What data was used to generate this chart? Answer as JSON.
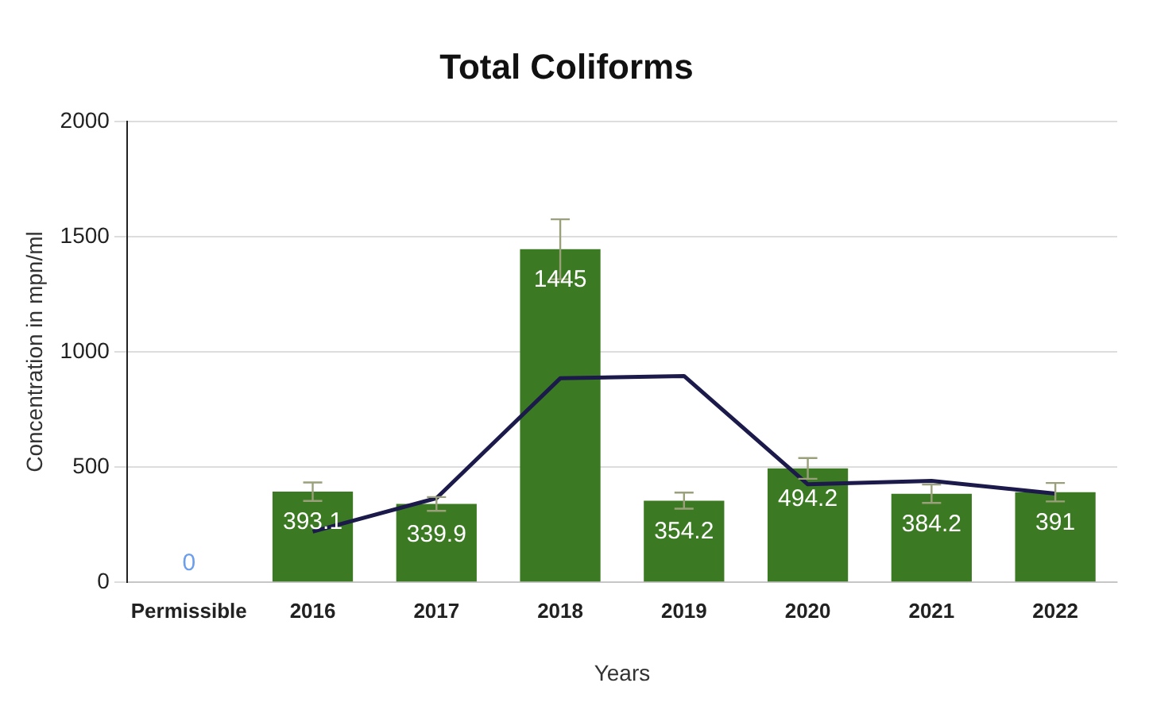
{
  "chart_data": {
    "type": "bar",
    "title": "Total Coliforms",
    "xlabel": "Years",
    "ylabel": "Concentration in mpn/ml",
    "categories": [
      "Permissible",
      "2016",
      "2017",
      "2018",
      "2019",
      "2020",
      "2021",
      "2022"
    ],
    "series": [
      {
        "colors": [
          "#6d9eeb",
          "#3b7a23",
          "#3b7a23",
          "#3b7a23",
          "#3b7a23",
          "#3b7a23",
          "#3b7a23",
          "#3b7a23"
        ],
        "values": [
          0,
          393.1,
          339.9,
          1445,
          354.2,
          494.2,
          384.2,
          391
        ],
        "value_labels": [
          "0",
          "393.1",
          "339.9",
          "1445",
          "354.2",
          "494.2",
          "384.2",
          "391"
        ],
        "errors": [
          null,
          40,
          30,
          130,
          35,
          45,
          40,
          40
        ]
      },
      {
        "type": "line",
        "color": "#1b1a4b",
        "values": [
          null,
          220,
          365,
          885,
          895,
          425,
          440,
          385
        ]
      }
    ],
    "ylim": [
      0,
      2000
    ],
    "yticks": [
      0,
      500,
      1000,
      1500,
      2000
    ],
    "grid": "y",
    "legend": false,
    "marker": "none"
  }
}
